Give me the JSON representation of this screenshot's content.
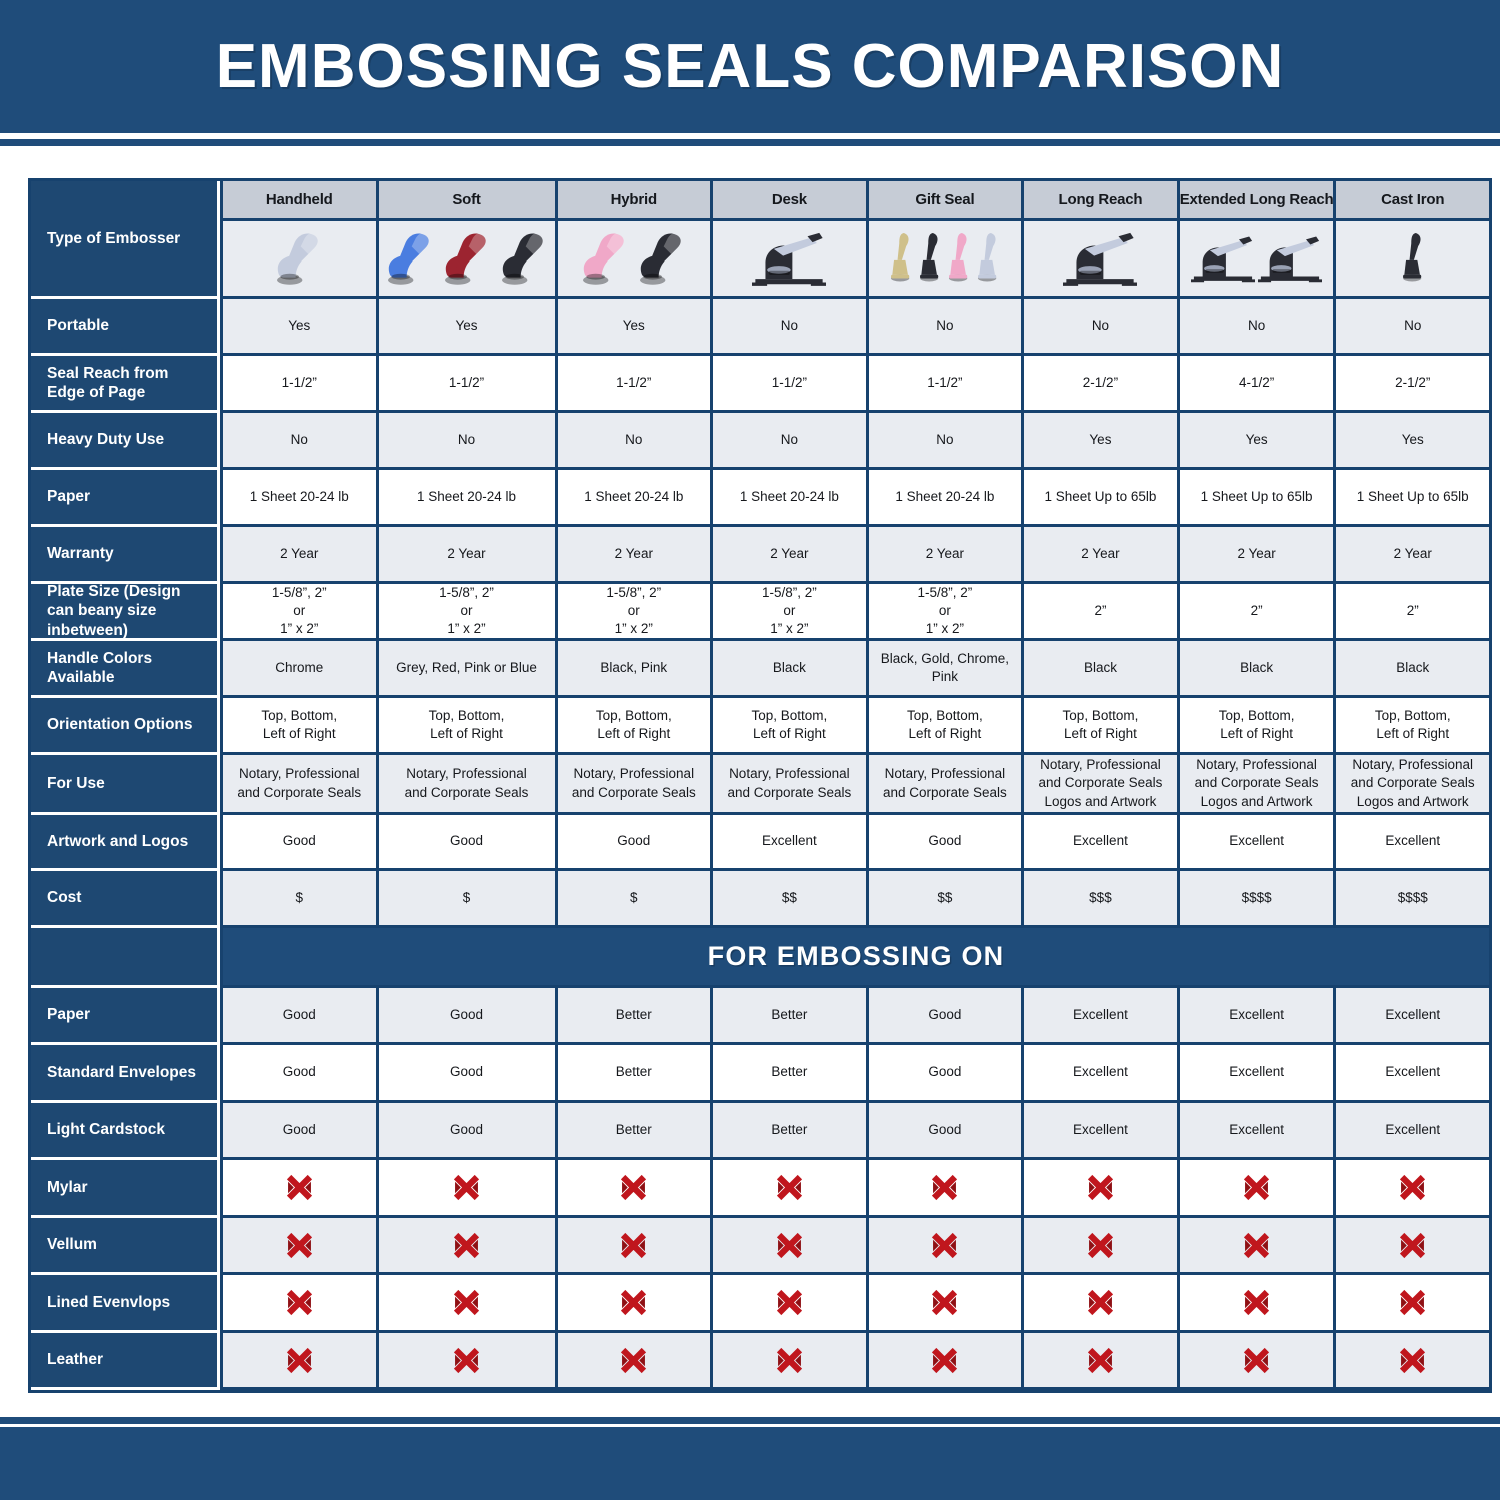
{
  "chart_data": {
    "type": "table",
    "title": "EMBOSSING SEALS COMPARISON",
    "section_title": "FOR EMBOSSING ON",
    "type_row_label": "Type of Embosser",
    "columns": [
      "Handheld",
      "Soft",
      "Hybrid",
      "Desk",
      "Gift Seal",
      "Long Reach",
      "Extended Long Reach",
      "Cast Iron"
    ],
    "spec_rows": [
      {
        "key": "portable",
        "label": "Portable",
        "values": [
          "Yes",
          "Yes",
          "Yes",
          "No",
          "No",
          "No",
          "No",
          "No"
        ]
      },
      {
        "key": "seal-reach",
        "label": "Seal Reach from Edge of Page",
        "values": [
          "1-1/2”",
          "1-1/2”",
          "1-1/2”",
          "1-1/2”",
          "1-1/2”",
          "2-1/2”",
          "4-1/2”",
          "2-1/2”"
        ]
      },
      {
        "key": "heavy-duty-use",
        "label": "Heavy Duty Use",
        "values": [
          "No",
          "No",
          "No",
          "No",
          "No",
          "Yes",
          "Yes",
          "Yes"
        ]
      },
      {
        "key": "paper",
        "label": "Paper",
        "values": [
          "1 Sheet 20-24 lb",
          "1 Sheet 20-24 lb",
          "1 Sheet 20-24 lb",
          "1 Sheet 20-24 lb",
          "1 Sheet 20-24 lb",
          "1 Sheet Up to 65lb",
          "1 Sheet Up to 65lb",
          "1 Sheet Up to 65lb"
        ]
      },
      {
        "key": "warranty",
        "label": "Warranty",
        "values": [
          "2 Year",
          "2 Year",
          "2 Year",
          "2 Year",
          "2 Year",
          "2 Year",
          "2 Year",
          "2 Year"
        ]
      },
      {
        "key": "plate-size",
        "label": "Plate Size (Design can beany size inbetween)",
        "values": [
          "1-5/8”, 2”\nor\n1” x 2”",
          "1-5/8”, 2”\nor\n1” x 2”",
          "1-5/8”, 2”\nor\n1” x 2”",
          "1-5/8”, 2”\nor\n1” x 2”",
          "1-5/8”, 2”\nor\n1” x 2”",
          "2”",
          "2”",
          "2”"
        ]
      },
      {
        "key": "handle-colors",
        "label": "Handle Colors Available",
        "values": [
          "Chrome",
          "Grey, Red, Pink or Blue",
          "Black, Pink",
          "Black",
          "Black, Gold, Chrome, Pink",
          "Black",
          "Black",
          "Black"
        ]
      },
      {
        "key": "orientation-options",
        "label": "Orientation Options",
        "values": [
          "Top, Bottom,\nLeft of Right",
          "Top, Bottom,\nLeft of Right",
          "Top, Bottom,\nLeft of Right",
          "Top, Bottom,\nLeft of Right",
          "Top, Bottom,\nLeft of Right",
          "Top, Bottom,\nLeft of Right",
          "Top, Bottom,\nLeft of Right",
          "Top, Bottom,\nLeft of Right"
        ]
      },
      {
        "key": "for-use",
        "label": "For Use",
        "values": [
          "Notary, Professional\nand Corporate Seals",
          "Notary, Professional\nand Corporate Seals",
          "Notary, Professional\nand Corporate Seals",
          "Notary, Professional\nand Corporate Seals",
          "Notary, Professional\nand Corporate Seals",
          "Notary, Professional\nand Corporate Seals\nLogos and Artwork",
          "Notary, Professional\nand Corporate Seals\nLogos and Artwork",
          "Notary, Professional\nand Corporate Seals\nLogos and Artwork"
        ]
      },
      {
        "key": "artwork-and-logos",
        "label": "Artwork and Logos",
        "values": [
          "Good",
          "Good",
          "Good",
          "Excellent",
          "Good",
          "Excellent",
          "Excellent",
          "Excellent"
        ]
      },
      {
        "key": "cost",
        "label": "Cost",
        "values": [
          "$",
          "$",
          "$",
          "$$",
          "$$",
          "$$$",
          "$$$$",
          "$$$$"
        ]
      }
    ],
    "embossing_rows": [
      {
        "key": "paper",
        "label": "Paper",
        "values": [
          "Good",
          "Good",
          "Better",
          "Better",
          "Good",
          "Excellent",
          "Excellent",
          "Excellent"
        ]
      },
      {
        "key": "standard-envelopes",
        "label": "Standard Envelopes",
        "values": [
          "Good",
          "Good",
          "Better",
          "Better",
          "Good",
          "Excellent",
          "Excellent",
          "Excellent"
        ]
      },
      {
        "key": "light-cardstock",
        "label": "Light Cardstock",
        "values": [
          "Good",
          "Good",
          "Better",
          "Better",
          "Good",
          "Excellent",
          "Excellent",
          "Excellent"
        ]
      },
      {
        "key": "mylar",
        "label": "Mylar",
        "values": [
          "x",
          "x",
          "x",
          "x",
          "x",
          "x",
          "x",
          "x"
        ]
      },
      {
        "key": "vellum",
        "label": "Vellum",
        "values": [
          "x",
          "x",
          "x",
          "x",
          "x",
          "x",
          "x",
          "x"
        ]
      },
      {
        "key": "lined-evenvlops",
        "label": "Lined Evenvlops",
        "values": [
          "x",
          "x",
          "x",
          "x",
          "x",
          "x",
          "x",
          "x"
        ]
      },
      {
        "key": "leather",
        "label": "Leather",
        "values": [
          "x",
          "x",
          "x",
          "x",
          "x",
          "x",
          "x",
          "x"
        ]
      }
    ]
  },
  "product_images": [
    {
      "name": "handheld-embosser-photo",
      "shape": "clamp",
      "colors": [
        "chrome"
      ]
    },
    {
      "name": "soft-embosser-photo",
      "shape": "clamp",
      "colors": [
        "blue",
        "red",
        "black"
      ]
    },
    {
      "name": "hybrid-embosser-photo",
      "shape": "clamp",
      "colors": [
        "pink",
        "black"
      ]
    },
    {
      "name": "desk-embosser-photo",
      "shape": "desk",
      "colors": [
        "black"
      ]
    },
    {
      "name": "gift-seal-embosser-photo",
      "shape": "slim",
      "colors": [
        "gold",
        "black",
        "pink",
        "chrome"
      ]
    },
    {
      "name": "long-reach-embosser-photo",
      "shape": "desk",
      "colors": [
        "black"
      ]
    },
    {
      "name": "extended-long-reach-embosser-photo",
      "shape": "desk",
      "colors": [
        "black",
        "black"
      ]
    },
    {
      "name": "cast-iron-embosser-photo",
      "shape": "slim",
      "colors": [
        "black"
      ]
    }
  ],
  "colors": {
    "brand_blue": "#1f4c7a",
    "label_blue": "#1e4872",
    "border_blue": "#17426e",
    "header_row_bg": "#c6ccd6",
    "light_row_bg": "#e9ecf1",
    "white_row_bg": "#ffffff",
    "x_red": "#c0161d",
    "x_red_dark": "#8f1014",
    "product_palette": {
      "chrome": "#c3cbdd",
      "blue": "#4a7de0",
      "red": "#9c2430",
      "black": "#2a2c34",
      "pink": "#f0a8c8",
      "gold": "#cfc08a"
    }
  }
}
